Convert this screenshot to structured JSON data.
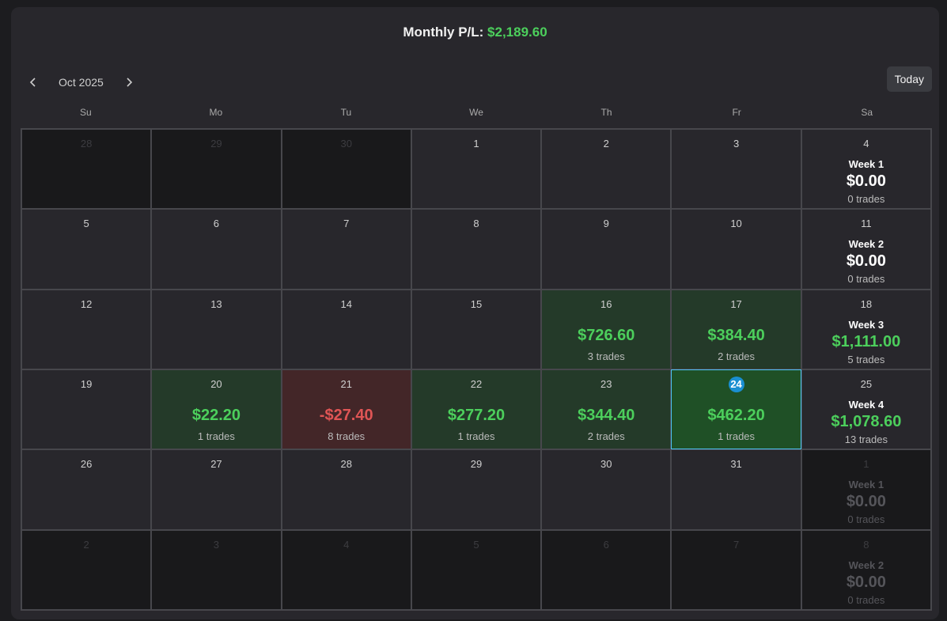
{
  "header": {
    "label": "Monthly P/L:",
    "value": "$2,189.60",
    "tone": "profit"
  },
  "nav": {
    "month": "Oct 2025",
    "today": "Today"
  },
  "weekdays": [
    "Su",
    "Mo",
    "Tu",
    "We",
    "Th",
    "Fr",
    "Sa"
  ],
  "weeks": [
    {
      "days": [
        {
          "date": "28",
          "muted": true
        },
        {
          "date": "29",
          "muted": true
        },
        {
          "date": "30",
          "muted": true
        },
        {
          "date": "1"
        },
        {
          "date": "2"
        },
        {
          "date": "3"
        },
        {
          "date": "4"
        }
      ],
      "summary": {
        "label": "Week 1",
        "pl": "$0.00",
        "trades": "0 trades",
        "tone": "zero"
      }
    },
    {
      "days": [
        {
          "date": "5"
        },
        {
          "date": "6"
        },
        {
          "date": "7"
        },
        {
          "date": "8"
        },
        {
          "date": "9"
        },
        {
          "date": "10"
        },
        {
          "date": "11"
        }
      ],
      "summary": {
        "label": "Week 2",
        "pl": "$0.00",
        "trades": "0 trades",
        "tone": "zero"
      }
    },
    {
      "days": [
        {
          "date": "12"
        },
        {
          "date": "13"
        },
        {
          "date": "14"
        },
        {
          "date": "15"
        },
        {
          "date": "16",
          "pl": "$726.60",
          "trades": "3 trades",
          "tone": "profit"
        },
        {
          "date": "17",
          "pl": "$384.40",
          "trades": "2 trades",
          "tone": "profit"
        },
        {
          "date": "18"
        }
      ],
      "summary": {
        "label": "Week 3",
        "pl": "$1,111.00",
        "trades": "5 trades",
        "tone": "profit"
      }
    },
    {
      "days": [
        {
          "date": "19"
        },
        {
          "date": "20",
          "pl": "$22.20",
          "trades": "1 trades",
          "tone": "profit"
        },
        {
          "date": "21",
          "pl": "-$27.40",
          "trades": "8 trades",
          "tone": "loss"
        },
        {
          "date": "22",
          "pl": "$277.20",
          "trades": "1 trades",
          "tone": "profit"
        },
        {
          "date": "23",
          "pl": "$344.40",
          "trades": "2 trades",
          "tone": "profit"
        },
        {
          "date": "24",
          "pl": "$462.20",
          "trades": "1 trades",
          "tone": "profit",
          "today": true
        },
        {
          "date": "25"
        }
      ],
      "summary": {
        "label": "Week 4",
        "pl": "$1,078.60",
        "trades": "13 trades",
        "tone": "profit"
      }
    },
    {
      "days": [
        {
          "date": "26"
        },
        {
          "date": "27"
        },
        {
          "date": "28"
        },
        {
          "date": "29"
        },
        {
          "date": "30"
        },
        {
          "date": "31"
        },
        {
          "date": "1",
          "muted": true
        }
      ],
      "summary": {
        "label": "Week 1",
        "pl": "$0.00",
        "trades": "0 trades",
        "tone": "muted"
      }
    },
    {
      "days": [
        {
          "date": "2",
          "muted": true
        },
        {
          "date": "3",
          "muted": true
        },
        {
          "date": "4",
          "muted": true
        },
        {
          "date": "5",
          "muted": true
        },
        {
          "date": "6",
          "muted": true
        },
        {
          "date": "7",
          "muted": true
        },
        {
          "date": "8",
          "muted": true
        }
      ],
      "summary": {
        "label": "Week 2",
        "pl": "$0.00",
        "trades": "0 trades",
        "tone": "muted"
      }
    }
  ]
}
